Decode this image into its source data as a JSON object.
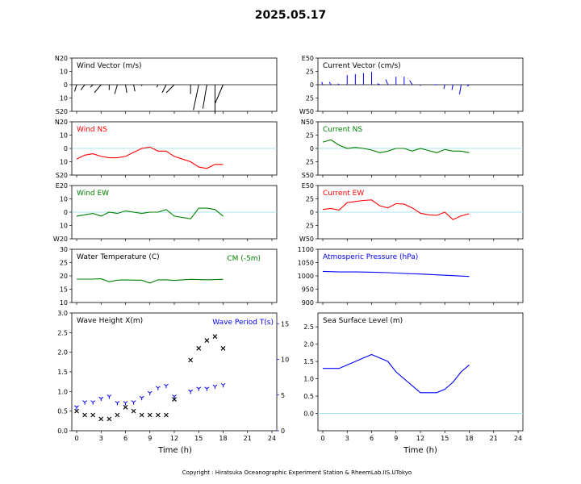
{
  "figure": {
    "title": "2025.05.17",
    "footer": "Copyright : Hiratsuka Oceanographic Experiment Station & RheemLab.IIS.UTokyo",
    "x_label": "Time (h)",
    "x_ticks": [
      "0",
      "3",
      "6",
      "9",
      "12",
      "15",
      "18",
      "21",
      "24"
    ],
    "colors": {
      "wind": "#000000",
      "current": "#0000ff",
      "ns": "#ff0000",
      "ew": "#008000",
      "zero": "#a8e4ec"
    }
  },
  "chart_data": [
    {
      "id": "wind_vector",
      "type": "vector",
      "title": "Wind Vector (m/s)",
      "yticks": [
        "N20",
        "10",
        "0",
        "10",
        "S20"
      ],
      "ylim": [
        -20,
        20
      ],
      "xlim": [
        0,
        24
      ],
      "color": "#000000",
      "x": [
        0,
        1,
        2,
        3,
        4,
        5,
        6,
        7,
        8,
        9,
        10,
        11,
        12,
        14,
        15,
        16,
        17,
        18
      ],
      "u": [
        -1.5,
        -3,
        -2,
        -5,
        0,
        -2,
        1,
        1,
        0,
        0,
        -1,
        -3,
        -6,
        0,
        -4,
        -3,
        0,
        -6
      ],
      "v": [
        -5,
        -4,
        -2,
        -6,
        -4,
        -7,
        -6,
        -5,
        -1,
        0,
        -2,
        -6,
        -6,
        -7,
        -19,
        -18,
        -22,
        -14
      ]
    },
    {
      "id": "current_vector",
      "type": "vector",
      "title": "Current Vector (cm/s)",
      "yticks": [
        "E50",
        "25",
        "0",
        "25",
        "W50"
      ],
      "ylim": [
        -50,
        50
      ],
      "xlim": [
        0,
        24
      ],
      "color": "#0000ff",
      "x": [
        0,
        1,
        2,
        3,
        4,
        5,
        6,
        7,
        8,
        9,
        10,
        11,
        12,
        14,
        15,
        16,
        17,
        18
      ],
      "u": [
        -2,
        -3,
        -2,
        0,
        0,
        0,
        0,
        -4,
        -4,
        0,
        0,
        -5,
        0,
        -4,
        -2,
        -2,
        -3,
        -4
      ],
      "v": [
        5,
        5,
        2,
        18,
        20,
        22,
        24,
        2,
        10,
        15,
        15,
        8,
        -2,
        0,
        -8,
        -10,
        -18,
        -3
      ]
    },
    {
      "id": "wind_ns",
      "type": "line",
      "title": "Wind NS",
      "yticks": [
        "N20",
        "10",
        "0",
        "10",
        "S20"
      ],
      "ylim": [
        -20,
        20
      ],
      "xlim": [
        0,
        24
      ],
      "color": "#ff0000",
      "x": [
        0,
        1,
        2,
        3,
        4,
        5,
        6,
        7,
        8,
        9,
        10,
        11,
        12,
        13,
        14,
        15,
        16,
        17,
        18
      ],
      "y": [
        -8,
        -5,
        -4,
        -6,
        -7,
        -7,
        -6,
        -3,
        0,
        1,
        -2,
        -2,
        -6,
        -8,
        -10,
        -14,
        -15,
        -12,
        -12
      ]
    },
    {
      "id": "current_ns",
      "type": "line",
      "title": "Current NS",
      "yticks": [
        "N50",
        "25",
        "0",
        "25",
        "S50"
      ],
      "ylim": [
        -50,
        50
      ],
      "xlim": [
        0,
        24
      ],
      "color": "#008000",
      "x": [
        0,
        1,
        2,
        3,
        4,
        5,
        6,
        7,
        8,
        9,
        10,
        11,
        12,
        13,
        14,
        15,
        16,
        17,
        18
      ],
      "y": [
        12,
        16,
        6,
        0,
        2,
        0,
        -3,
        -8,
        -5,
        0,
        0,
        -5,
        0,
        -4,
        -8,
        -2,
        -5,
        -5,
        -8
      ]
    },
    {
      "id": "wind_ew",
      "type": "line",
      "title": "Wind EW",
      "yticks": [
        "E20",
        "10",
        "0",
        "10",
        "W20"
      ],
      "ylim": [
        -20,
        20
      ],
      "xlim": [
        0,
        24
      ],
      "color": "#008000",
      "x": [
        0,
        1,
        2,
        3,
        4,
        5,
        6,
        7,
        8,
        9,
        10,
        11,
        12,
        13,
        14,
        15,
        16,
        17,
        18
      ],
      "y": [
        -3,
        -2,
        -1,
        -3,
        0,
        -1,
        1,
        0,
        -1,
        0,
        0,
        2,
        -3,
        -4,
        -5,
        3,
        3,
        2,
        -3
      ]
    },
    {
      "id": "current_ew",
      "type": "line",
      "title": "Current EW",
      "yticks": [
        "E50",
        "25",
        "0",
        "25",
        "W50"
      ],
      "ylim": [
        -50,
        50
      ],
      "xlim": [
        0,
        24
      ],
      "color": "#ff0000",
      "x": [
        0,
        1,
        2,
        3,
        4,
        5,
        6,
        7,
        8,
        9,
        10,
        11,
        12,
        13,
        14,
        15,
        16,
        17,
        18
      ],
      "y": [
        5,
        7,
        4,
        18,
        20,
        22,
        23,
        12,
        8,
        16,
        15,
        8,
        -2,
        -5,
        -6,
        0,
        -14,
        -7,
        -3
      ]
    },
    {
      "id": "water_temp",
      "type": "line",
      "title": "Water Temperature (C)",
      "annotation": "CM (-5m)",
      "yticks": [
        "30",
        "25",
        "20",
        "15",
        "10"
      ],
      "ylim": [
        10,
        30
      ],
      "xlim": [
        0,
        24
      ],
      "color": "#008000",
      "x": [
        0,
        1,
        2,
        3,
        4,
        5,
        6,
        7,
        8,
        9,
        10,
        11,
        12,
        13,
        14,
        15,
        16,
        17,
        18
      ],
      "y": [
        18.8,
        18.8,
        18.8,
        18.9,
        17.8,
        18.4,
        18.5,
        18.4,
        18.4,
        17.3,
        18.5,
        18.5,
        18.3,
        18.5,
        18.7,
        18.6,
        18.5,
        18.6,
        18.7
      ]
    },
    {
      "id": "pressure",
      "type": "line",
      "title": "Atmosperic Pressure (hPa)",
      "yticks": [
        "1100",
        "1050",
        "1000",
        "950",
        "900"
      ],
      "ylim": [
        900,
        1100
      ],
      "xlim": [
        0,
        24
      ],
      "color": "#0000ff",
      "x": [
        0,
        2,
        4,
        6,
        8,
        10,
        12,
        14,
        16,
        18
      ],
      "y": [
        1017,
        1015,
        1015,
        1014,
        1012,
        1009,
        1007,
        1004,
        1001,
        998
      ]
    },
    {
      "id": "wave",
      "type": "scatter",
      "title": "Wave Height X(m)",
      "title2": "Wave Period T(s)",
      "yticks": [
        "0.0",
        "0.5",
        "1.0",
        "1.5",
        "2.0",
        "2.5",
        "3.0"
      ],
      "ylim": [
        0,
        3
      ],
      "xlim": [
        0,
        24
      ],
      "y2ticks": [
        "0",
        "5",
        "10",
        "15"
      ],
      "y2lim": [
        0,
        16.5
      ],
      "color": "#000000",
      "color2": "#0000ff",
      "x": [
        0,
        1,
        2,
        3,
        4,
        5,
        6,
        7,
        8,
        9,
        10,
        11,
        12,
        14,
        15,
        16,
        17,
        18
      ],
      "height": [
        0.5,
        0.4,
        0.4,
        0.3,
        0.3,
        0.4,
        0.6,
        0.5,
        0.4,
        0.4,
        0.4,
        0.4,
        0.8,
        1.8,
        2.1,
        2.3,
        2.4,
        2.1
      ],
      "period": [
        3.3,
        4.0,
        4.0,
        4.5,
        4.8,
        3.9,
        3.9,
        4.0,
        4.6,
        5.3,
        6.0,
        6.3,
        4.8,
        5.5,
        5.9,
        5.9,
        6.2,
        6.4
      ]
    },
    {
      "id": "sea_level",
      "type": "line",
      "title": "Sea Surface Level (m)",
      "yticks": [
        "0.0",
        "0.5",
        "1.0",
        "1.5",
        "2.0",
        "2.5"
      ],
      "ylim": [
        -0.5,
        2.9
      ],
      "xlim": [
        0,
        24
      ],
      "color": "#0000ff",
      "x": [
        0,
        1,
        2,
        3,
        4,
        5,
        6,
        7,
        8,
        9,
        10,
        11,
        12,
        13,
        14,
        15,
        16,
        17,
        18
      ],
      "y": [
        1.3,
        1.3,
        1.3,
        1.4,
        1.5,
        1.6,
        1.7,
        1.6,
        1.5,
        1.2,
        1.0,
        0.8,
        0.6,
        0.6,
        0.6,
        0.7,
        0.9,
        1.2,
        1.4
      ]
    }
  ]
}
